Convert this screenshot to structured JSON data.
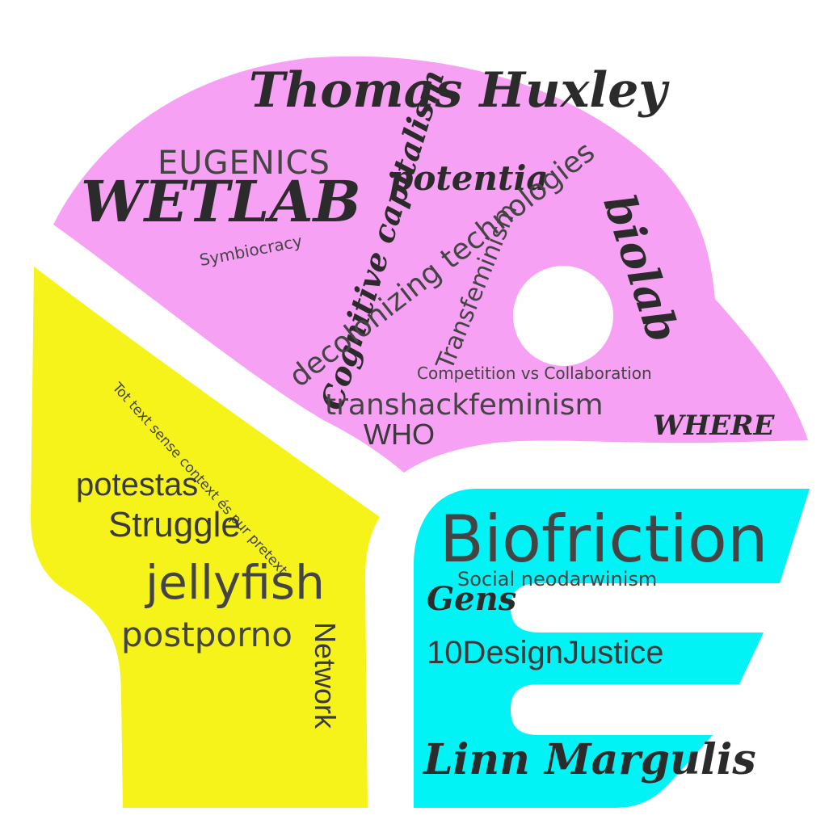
{
  "colors": {
    "pink": "#f7a1f4",
    "yellow": "#f6f31a",
    "cyan": "#02f3f5",
    "text": "#333333",
    "background": "#ffffff"
  },
  "regions": {
    "pink": {
      "words": {
        "thomas_huxley": "Thomas Huxley",
        "eugenics": "EUGENICS",
        "wetlab": "WETLAB",
        "potentia": "potentia",
        "cognitive_capitalism": "Cognitive capitalism",
        "symbiocracy": "Symbiocracy",
        "decolonizing_technologies": "decolonizing technologies",
        "transfeminism": "Transfeminism",
        "biolab": "biolab",
        "competition": "Competition vs Collaboration",
        "transhackfeminism": "transhackfeminism",
        "who": "WHO",
        "where": "WHERE"
      }
    },
    "yellow": {
      "words": {
        "tot_text": "Tot text sense context és pur pretext",
        "potestas": "potestas",
        "struggle": "Struggle",
        "jellyfish": "jellyfish",
        "postporno": "postporno",
        "network": "Network"
      }
    },
    "cyan": {
      "words": {
        "biofriction": "Biofriction",
        "social_neodarwinism": "Social neodarwinism",
        "gens": "Gens",
        "design_justice": "10DesignJustice",
        "linn_margulis": "Linn Margulis"
      }
    }
  }
}
